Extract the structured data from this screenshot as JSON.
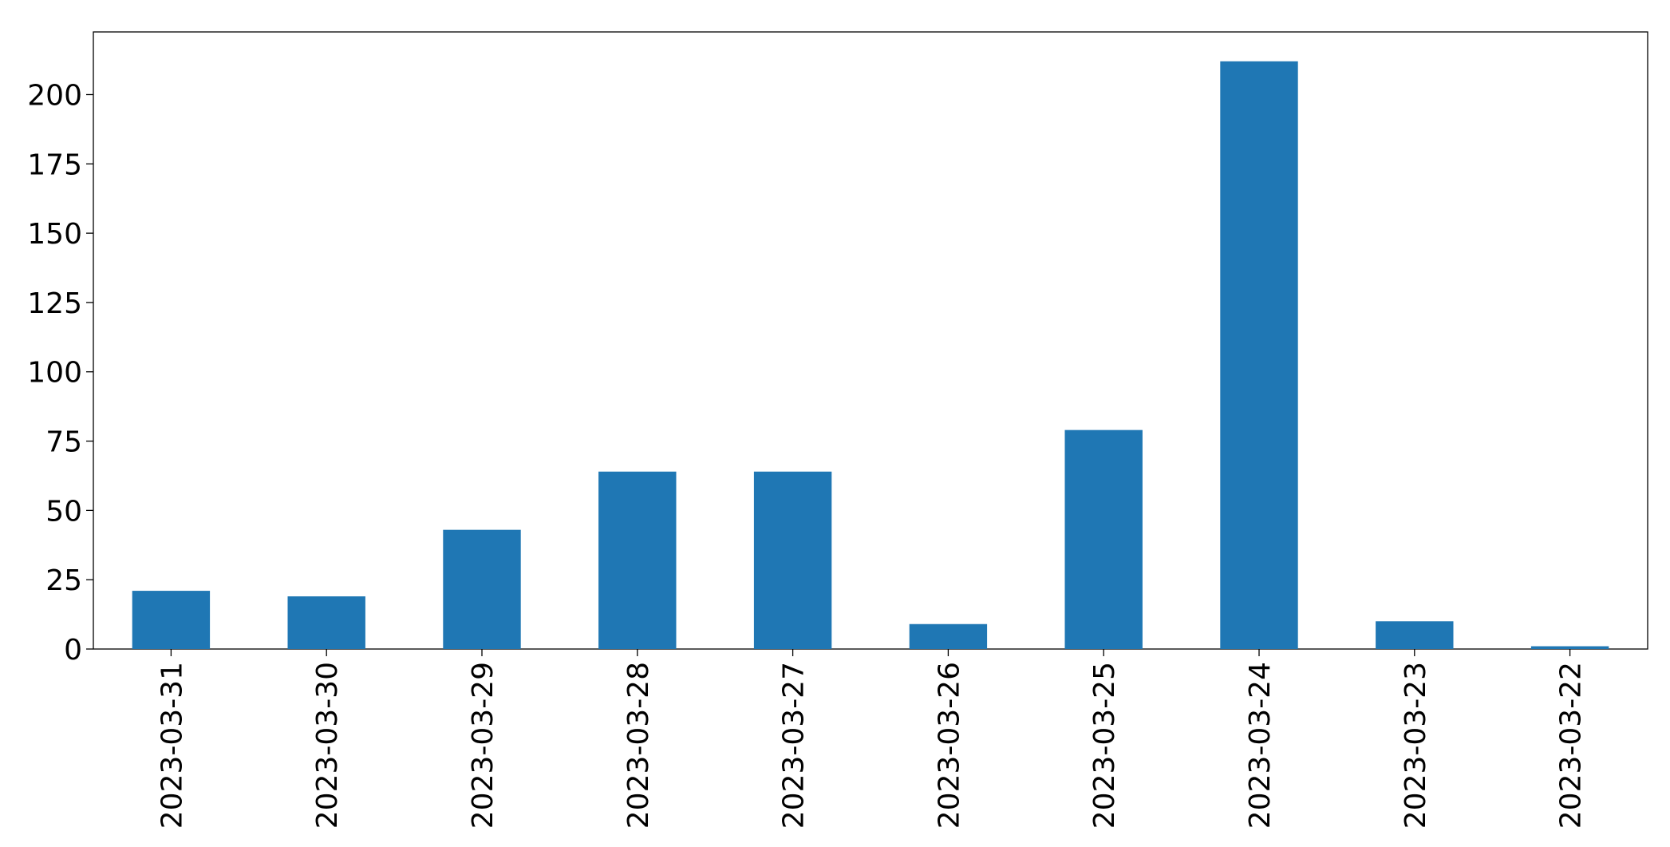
{
  "chart_data": {
    "type": "bar",
    "categories": [
      "2023-03-31",
      "2023-03-30",
      "2023-03-29",
      "2023-03-28",
      "2023-03-27",
      "2023-03-26",
      "2023-03-25",
      "2023-03-24",
      "2023-03-23",
      "2023-03-22"
    ],
    "values": [
      21,
      19,
      43,
      64,
      64,
      9,
      79,
      212,
      10,
      1
    ],
    "color": "#1f77b4",
    "ylim": [
      0,
      222.6
    ],
    "yticks": [
      0,
      25,
      50,
      75,
      100,
      125,
      150,
      175,
      200
    ],
    "grid": false
  }
}
